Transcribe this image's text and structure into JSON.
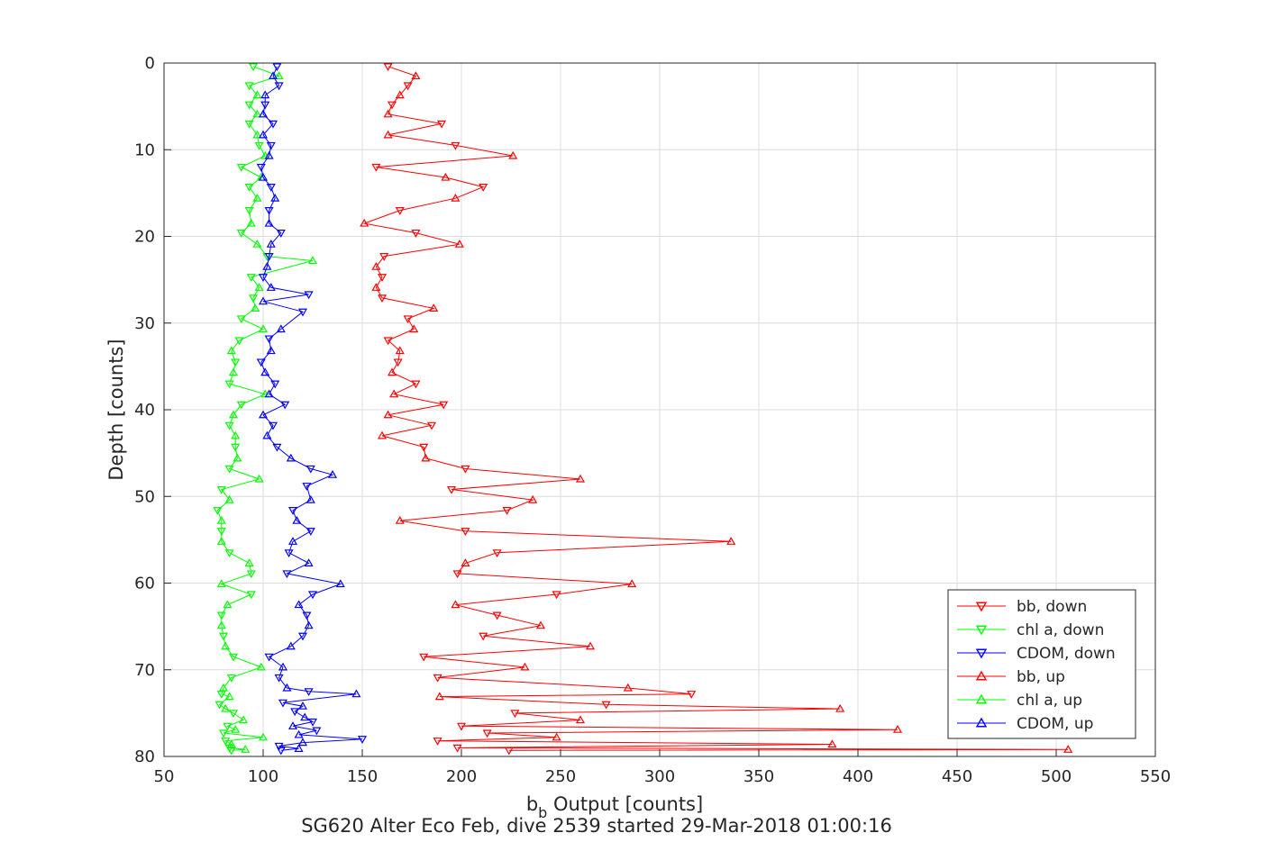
{
  "chart_data": {
    "type": "line",
    "xlabel_main": "b",
    "xlabel_sub": "b",
    "xlabel_rest": " Output [counts]",
    "ylabel": "Depth [counts]",
    "caption": "SG620 Alter Eco Feb, dive 2539 started 29-Mar-2018 01:00:16",
    "xlim": [
      50,
      550
    ],
    "ylim": [
      0,
      80
    ],
    "y_reversed": true,
    "grid": true,
    "legend_position": "bottom-right",
    "xticks": [
      50,
      100,
      150,
      200,
      250,
      300,
      350,
      400,
      450,
      500,
      550
    ],
    "yticks": [
      0,
      10,
      20,
      30,
      40,
      50,
      60,
      70,
      80
    ],
    "series": [
      {
        "name": "bb, down",
        "color": "#ff0000",
        "marker": "triangle-down",
        "points": [
          [
            163,
            0.4
          ],
          [
            177,
            1.5
          ],
          [
            173,
            2.6
          ],
          [
            169,
            3.7
          ],
          [
            165,
            4.8
          ],
          [
            163,
            5.9
          ],
          [
            190,
            7.0
          ],
          [
            163,
            8.3
          ],
          [
            197,
            9.5
          ],
          [
            226,
            10.7
          ],
          [
            157,
            12.0
          ],
          [
            192,
            13.2
          ],
          [
            211,
            14.3
          ],
          [
            197,
            15.6
          ],
          [
            169,
            17.0
          ],
          [
            151,
            18.5
          ],
          [
            177,
            19.6
          ],
          [
            199,
            20.9
          ],
          [
            161,
            22.3
          ],
          [
            157,
            23.5
          ],
          [
            160,
            24.7
          ],
          [
            157,
            25.9
          ],
          [
            160,
            27.1
          ],
          [
            186,
            28.3
          ],
          [
            173,
            29.5
          ],
          [
            176,
            30.7
          ],
          [
            163,
            32.0
          ],
          [
            169,
            33.2
          ],
          [
            168,
            34.5
          ],
          [
            165,
            35.7
          ],
          [
            177,
            37.0
          ],
          [
            166,
            38.2
          ],
          [
            191,
            39.4
          ],
          [
            163,
            40.6
          ],
          [
            185,
            41.8
          ],
          [
            160,
            43.0
          ],
          [
            181,
            44.3
          ],
          [
            182,
            45.6
          ],
          [
            202,
            46.8
          ],
          [
            260,
            48.0
          ],
          [
            195,
            49.2
          ],
          [
            236,
            50.4
          ],
          [
            223,
            51.6
          ],
          [
            169,
            52.8
          ],
          [
            202,
            54.0
          ],
          [
            336,
            55.2
          ],
          [
            218,
            56.5
          ],
          [
            202,
            57.7
          ],
          [
            198,
            58.9
          ],
          [
            286,
            60.1
          ],
          [
            248,
            61.3
          ],
          [
            197,
            62.5
          ],
          [
            218,
            63.7
          ],
          [
            240,
            64.9
          ],
          [
            211,
            66.1
          ],
          [
            265,
            67.3
          ],
          [
            181,
            68.5
          ],
          [
            232,
            69.7
          ],
          [
            188,
            70.9
          ],
          [
            284,
            72.1
          ],
          [
            316,
            72.8
          ],
          [
            189,
            73.1
          ],
          [
            273,
            74.0
          ],
          [
            391,
            74.5
          ],
          [
            227,
            75.0
          ],
          [
            260,
            75.8
          ],
          [
            200,
            76.5
          ],
          [
            420,
            76.9
          ],
          [
            213,
            77.3
          ],
          [
            248,
            77.8
          ],
          [
            188,
            78.2
          ],
          [
            387,
            78.6
          ],
          [
            198,
            79.0
          ],
          [
            506,
            79.2
          ],
          [
            224,
            79.3
          ]
        ]
      },
      {
        "name": "chl a, down",
        "color": "#00ff00",
        "marker": "triangle-down",
        "points": [
          [
            95,
            0.4
          ],
          [
            108,
            1.5
          ],
          [
            93,
            2.6
          ],
          [
            97,
            3.7
          ],
          [
            93,
            4.8
          ],
          [
            97,
            5.9
          ],
          [
            93,
            7.0
          ],
          [
            97,
            8.3
          ],
          [
            98,
            9.5
          ],
          [
            101,
            10.7
          ],
          [
            89,
            12.0
          ],
          [
            99,
            13.2
          ],
          [
            93,
            14.3
          ],
          [
            97,
            15.6
          ],
          [
            93,
            17.0
          ],
          [
            94,
            18.5
          ],
          [
            89,
            19.6
          ],
          [
            97,
            20.9
          ],
          [
            102,
            22.3
          ],
          [
            125,
            22.8
          ],
          [
            94,
            24.7
          ],
          [
            98,
            25.9
          ],
          [
            95,
            27.1
          ],
          [
            96,
            28.3
          ],
          [
            89,
            29.5
          ],
          [
            100,
            30.7
          ],
          [
            88,
            32.0
          ],
          [
            84,
            33.2
          ],
          [
            86,
            34.5
          ],
          [
            85,
            35.7
          ],
          [
            83,
            37.0
          ],
          [
            101,
            38.2
          ],
          [
            89,
            39.4
          ],
          [
            85,
            40.6
          ],
          [
            83,
            41.8
          ],
          [
            86,
            43.0
          ],
          [
            86,
            44.3
          ],
          [
            87,
            45.6
          ],
          [
            83,
            46.8
          ],
          [
            98,
            48.0
          ],
          [
            79,
            49.2
          ],
          [
            83,
            50.4
          ],
          [
            77,
            51.6
          ],
          [
            79,
            52.8
          ],
          [
            79,
            54.0
          ],
          [
            79,
            55.2
          ],
          [
            83,
            56.5
          ],
          [
            93,
            57.7
          ],
          [
            94,
            58.9
          ],
          [
            79,
            60.1
          ],
          [
            94,
            61.3
          ],
          [
            82,
            62.5
          ],
          [
            79,
            63.7
          ],
          [
            79,
            64.9
          ],
          [
            80,
            66.1
          ],
          [
            81,
            67.3
          ],
          [
            85,
            68.5
          ],
          [
            99,
            69.7
          ],
          [
            84,
            70.9
          ],
          [
            80,
            72.1
          ],
          [
            79,
            72.8
          ],
          [
            83,
            73.1
          ],
          [
            78,
            74.0
          ],
          [
            81,
            74.5
          ],
          [
            85,
            75.0
          ],
          [
            90,
            75.8
          ],
          [
            82,
            76.5
          ],
          [
            86,
            76.9
          ],
          [
            80,
            77.3
          ],
          [
            100,
            77.8
          ],
          [
            81,
            78.2
          ],
          [
            84,
            78.6
          ],
          [
            83,
            79.0
          ],
          [
            91,
            79.2
          ],
          [
            84,
            79.3
          ]
        ]
      },
      {
        "name": "CDOM, down",
        "color": "#0000ff",
        "marker": "triangle-down",
        "points": [
          [
            107,
            0.4
          ],
          [
            105,
            1.5
          ],
          [
            108,
            2.6
          ],
          [
            101,
            3.7
          ],
          [
            101,
            4.8
          ],
          [
            100,
            5.9
          ],
          [
            105,
            7.0
          ],
          [
            100,
            8.3
          ],
          [
            104,
            9.5
          ],
          [
            103,
            10.7
          ],
          [
            99,
            12.0
          ],
          [
            100,
            13.2
          ],
          [
            104,
            14.3
          ],
          [
            106,
            15.6
          ],
          [
            103,
            17.0
          ],
          [
            103,
            18.5
          ],
          [
            109,
            19.6
          ],
          [
            104,
            20.9
          ],
          [
            103,
            22.3
          ],
          [
            102,
            23.5
          ],
          [
            100,
            24.7
          ],
          [
            104,
            25.9
          ],
          [
            123,
            26.7
          ],
          [
            100,
            27.5
          ],
          [
            120,
            28.7
          ],
          [
            109,
            30.7
          ],
          [
            103,
            31.8
          ],
          [
            104,
            33.2
          ],
          [
            99,
            34.5
          ],
          [
            101,
            35.7
          ],
          [
            106,
            37.0
          ],
          [
            103,
            38.2
          ],
          [
            111,
            39.4
          ],
          [
            100,
            40.6
          ],
          [
            105,
            41.8
          ],
          [
            102,
            43.0
          ],
          [
            107,
            44.3
          ],
          [
            114,
            45.6
          ],
          [
            124,
            46.8
          ],
          [
            135,
            47.5
          ],
          [
            122,
            48.8
          ],
          [
            124,
            50.4
          ],
          [
            115,
            51.6
          ],
          [
            117,
            52.8
          ],
          [
            124,
            54.0
          ],
          [
            115,
            55.2
          ],
          [
            113,
            56.5
          ],
          [
            123,
            57.7
          ],
          [
            112,
            58.9
          ],
          [
            139,
            60.1
          ],
          [
            125,
            61.3
          ],
          [
            118,
            62.5
          ],
          [
            122,
            63.7
          ],
          [
            123,
            64.9
          ],
          [
            120,
            66.1
          ],
          [
            114,
            67.3
          ],
          [
            103,
            68.5
          ],
          [
            110,
            69.7
          ],
          [
            108,
            70.9
          ],
          [
            112,
            72.1
          ],
          [
            123,
            72.5
          ],
          [
            147,
            72.8
          ],
          [
            110,
            73.8
          ],
          [
            120,
            74.2
          ],
          [
            116,
            74.8
          ],
          [
            121,
            75.5
          ],
          [
            125,
            76.0
          ],
          [
            115,
            76.5
          ],
          [
            127,
            77.0
          ],
          [
            118,
            77.5
          ],
          [
            150,
            78.0
          ],
          [
            120,
            78.4
          ],
          [
            108,
            78.8
          ],
          [
            118,
            79.1
          ],
          [
            109,
            79.3
          ]
        ]
      },
      {
        "name": "bb, up",
        "color": "#ff0000",
        "marker": "triangle-up",
        "points": [],
        "note_points_same_path": true
      },
      {
        "name": "chl a, up",
        "color": "#00ff00",
        "marker": "triangle-up",
        "points": []
      },
      {
        "name": "CDOM, up",
        "color": "#0000ff",
        "marker": "triangle-up",
        "points": []
      }
    ]
  }
}
